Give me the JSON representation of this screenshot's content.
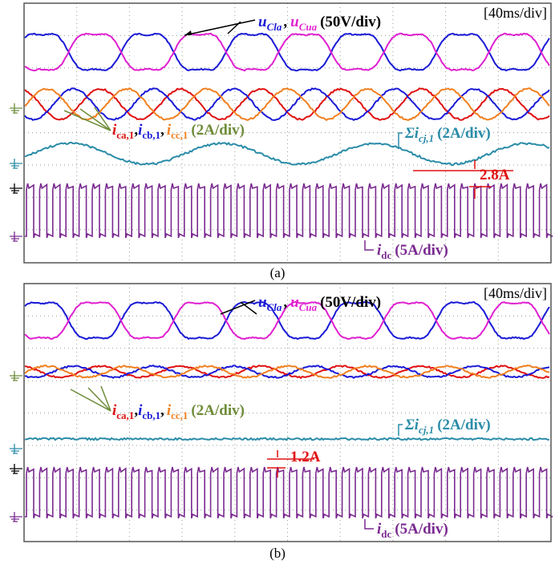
{
  "panels": [
    {
      "timebase": "[40ms/div]",
      "voltage_label": [
        "u",
        "Cla",
        ",",
        "u",
        "Cua",
        "(50V/div)"
      ],
      "current_label": [
        "i",
        "ca,1",
        ",",
        "i",
        "cb,1",
        ",",
        "i",
        "cc,1",
        "(2A/div)"
      ],
      "sum_label": [
        "Σi",
        "cj,1",
        "(2A/div)"
      ],
      "dc_label": [
        "i",
        "dc",
        "(5A/div)"
      ],
      "ripple": "2.8A",
      "caption": "(a)"
    },
    {
      "timebase": "[40ms/div]",
      "voltage_label": [
        "u",
        "Cla",
        ",",
        "u",
        "Cua",
        "(50V/div)"
      ],
      "current_label": [
        "i",
        "ca,1",
        ",",
        "i",
        "cb,1",
        ",",
        "i",
        "cc,1",
        "(2A/div)"
      ],
      "sum_label": [
        "Σi",
        "cj,1",
        "(2A/div)"
      ],
      "dc_label": [
        "i",
        "dc",
        "(5A/div)"
      ],
      "ripple": "1.2A",
      "caption": "(b)"
    }
  ]
}
